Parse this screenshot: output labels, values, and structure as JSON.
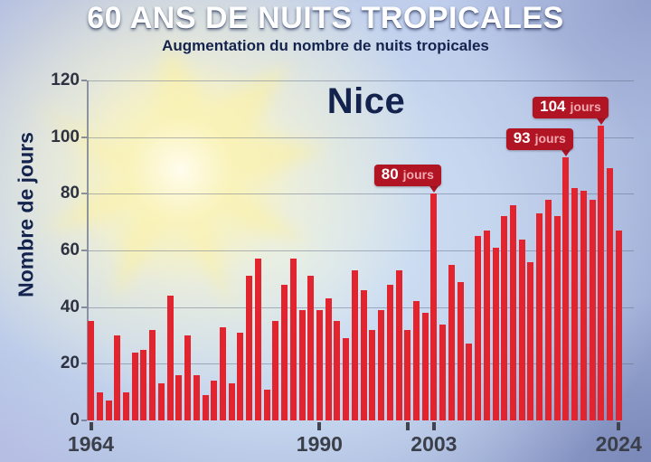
{
  "header": {
    "title": "60 ANS DE NUITS TROPICALES",
    "subtitle": "Augmentation du nombre de nuits tropicales"
  },
  "chart_data": {
    "type": "bar",
    "title": "Nice",
    "xlabel": "",
    "ylabel": "Nombre de jours",
    "ylim": [
      0,
      120
    ],
    "y_ticks": [
      0,
      20,
      40,
      60,
      80,
      100,
      120
    ],
    "grid": true,
    "legend": "none",
    "categories": [
      1964,
      1965,
      1966,
      1967,
      1968,
      1969,
      1970,
      1971,
      1972,
      1973,
      1974,
      1975,
      1976,
      1977,
      1978,
      1979,
      1980,
      1981,
      1982,
      1983,
      1984,
      1985,
      1986,
      1987,
      1988,
      1989,
      1990,
      1991,
      1992,
      1993,
      1994,
      1995,
      1996,
      1997,
      1998,
      1999,
      2000,
      2001,
      2002,
      2003,
      2004,
      2005,
      2006,
      2007,
      2008,
      2009,
      2010,
      2011,
      2012,
      2013,
      2014,
      2015,
      2016,
      2017,
      2018,
      2019,
      2020,
      2021,
      2022,
      2023,
      2024
    ],
    "values": [
      35,
      10,
      7,
      30,
      10,
      24,
      25,
      32,
      13,
      44,
      16,
      30,
      16,
      9,
      14,
      33,
      13,
      31,
      51,
      57,
      11,
      35,
      48,
      57,
      39,
      51,
      39,
      43,
      35,
      29,
      53,
      46,
      32,
      39,
      48,
      53,
      32,
      42,
      38,
      80,
      34,
      55,
      49,
      27,
      65,
      67,
      61,
      72,
      76,
      64,
      56,
      73,
      78,
      72,
      93,
      82,
      81,
      78,
      104,
      89,
      67
    ],
    "x_ticks": [
      {
        "year": 1964,
        "label": "1964"
      },
      {
        "year": 1990,
        "label": "1990"
      },
      {
        "year": 2000,
        "label": ""
      },
      {
        "year": 2003,
        "label": "2003"
      },
      {
        "year": 2024,
        "label": "2024"
      }
    ],
    "annotations": [
      {
        "year": 2003,
        "value": 80,
        "num": "80",
        "unit": "jours"
      },
      {
        "year": 2018,
        "value": 93,
        "num": "93",
        "unit": "jours"
      },
      {
        "year": 2022,
        "value": 104,
        "num": "104",
        "unit": "jours"
      }
    ]
  },
  "colors": {
    "bar": "#e2242f",
    "callout_bg": "#b11423",
    "callout_unit": "#f2a9b2",
    "navy": "#14234d",
    "sun_core": "#fffdf0",
    "sun_ray": "#f8efab"
  }
}
